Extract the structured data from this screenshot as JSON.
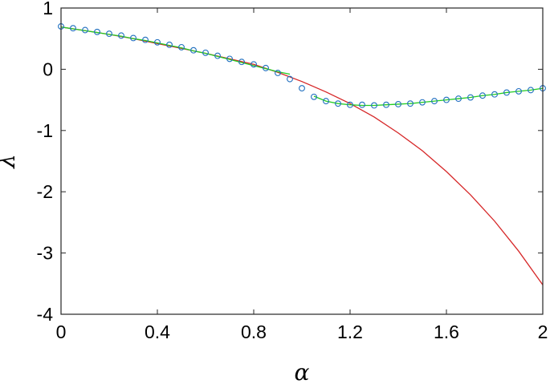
{
  "chart_data": {
    "type": "line",
    "xlabel": "α",
    "ylabel": "λ",
    "xlim": [
      0,
      2
    ],
    "ylim": [
      -4,
      1
    ],
    "xticks": [
      0,
      0.4,
      0.8,
      1.2,
      1.6,
      2
    ],
    "xtick_labels": [
      "0",
      "0.4",
      "0.8",
      "1.2",
      "1.6",
      "2"
    ],
    "yticks": [
      -4,
      -3,
      -2,
      -1,
      0,
      1
    ],
    "ytick_labels": [
      "-4",
      "-3",
      "-2",
      "-1",
      "0",
      "1"
    ],
    "grid": false,
    "legend": "none",
    "series": [
      {
        "kind": "line",
        "color": "#d62728",
        "x": [
          0,
          0.1,
          0.2,
          0.3,
          0.4,
          0.5,
          0.6,
          0.7,
          0.8,
          0.9,
          1.0,
          1.1,
          1.2,
          1.3,
          1.4,
          1.5,
          1.6,
          1.7,
          1.8,
          1.9,
          2.0
        ],
        "y": [
          0.69,
          0.63,
          0.57,
          0.5,
          0.42,
          0.34,
          0.26,
          0.17,
          0.08,
          -0.05,
          -0.2,
          -0.37,
          -0.56,
          -0.78,
          -1.04,
          -1.33,
          -1.67,
          -2.05,
          -2.48,
          -2.97,
          -3.52
        ]
      },
      {
        "kind": "line",
        "color": "#22cc22",
        "x": [
          0,
          0.05,
          0.1,
          0.15,
          0.2,
          0.25,
          0.3,
          0.35,
          0.4,
          0.45,
          0.5,
          0.55,
          0.6,
          0.65,
          0.7,
          0.75,
          0.8,
          0.85,
          0.9,
          0.95
        ],
        "y": [
          0.69,
          0.66,
          0.63,
          0.6,
          0.57,
          0.54,
          0.5,
          0.47,
          0.43,
          0.39,
          0.35,
          0.3,
          0.26,
          0.21,
          0.16,
          0.11,
          0.06,
          0.01,
          -0.04,
          -0.08
        ]
      },
      {
        "kind": "line",
        "color": "#22cc22",
        "x": [
          1.05,
          1.1,
          1.15,
          1.2,
          1.25,
          1.3,
          1.35,
          1.4,
          1.45,
          1.5,
          1.55,
          1.6,
          1.65,
          1.7,
          1.75,
          1.8,
          1.85,
          1.9,
          1.95,
          2.0
        ],
        "y": [
          -0.44,
          -0.52,
          -0.56,
          -0.58,
          -0.59,
          -0.59,
          -0.58,
          -0.57,
          -0.56,
          -0.54,
          -0.52,
          -0.5,
          -0.48,
          -0.46,
          -0.43,
          -0.41,
          -0.38,
          -0.36,
          -0.34,
          -0.31
        ]
      },
      {
        "kind": "scatter",
        "color": "#1f6fbf",
        "x": [
          0,
          0.05,
          0.1,
          0.15,
          0.2,
          0.25,
          0.3,
          0.35,
          0.4,
          0.45,
          0.5,
          0.55,
          0.6,
          0.65,
          0.7,
          0.75,
          0.8,
          0.85,
          0.9,
          0.95,
          1.0,
          1.05,
          1.1,
          1.15,
          1.2,
          1.25,
          1.3,
          1.35,
          1.4,
          1.45,
          1.5,
          1.55,
          1.6,
          1.65,
          1.7,
          1.75,
          1.8,
          1.85,
          1.9,
          1.95,
          2.0
        ],
        "y": [
          0.7,
          0.67,
          0.64,
          0.61,
          0.58,
          0.55,
          0.51,
          0.48,
          0.44,
          0.4,
          0.36,
          0.31,
          0.27,
          0.22,
          0.17,
          0.12,
          0.08,
          0.02,
          -0.06,
          -0.16,
          -0.31,
          -0.45,
          -0.52,
          -0.56,
          -0.58,
          -0.58,
          -0.59,
          -0.58,
          -0.57,
          -0.56,
          -0.54,
          -0.52,
          -0.5,
          -0.48,
          -0.46,
          -0.43,
          -0.41,
          -0.38,
          -0.36,
          -0.34,
          -0.31
        ]
      }
    ]
  }
}
